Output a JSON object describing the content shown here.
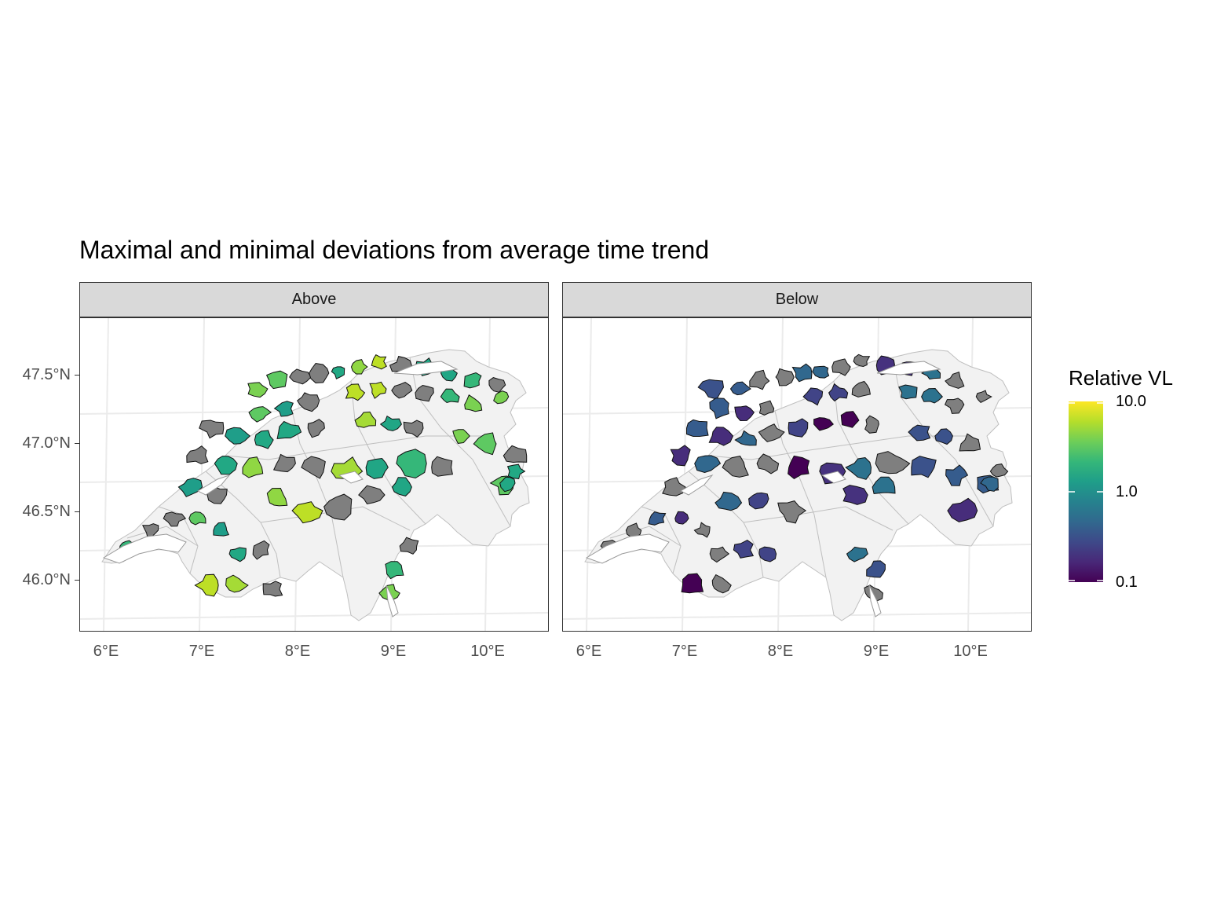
{
  "title": "Maximal and minimal deviations from average time trend",
  "panels": [
    {
      "label": "Above",
      "palette": [
        "#5ec962",
        "#7ad151",
        "#35b779",
        "#21a685",
        "#a5db36",
        "#bddf26",
        "#90d743",
        "#22a884",
        "#1f9e89"
      ]
    },
    {
      "label": "Below",
      "palette": [
        "#3b528b",
        "#2c728e",
        "#46327e",
        "#440154",
        "#414487",
        "#31688e",
        "#472d7b",
        "#365c8d"
      ]
    }
  ],
  "y_axis": {
    "ticks": [
      "47.5°N",
      "47.0°N",
      "46.5°N",
      "46.0°N"
    ]
  },
  "x_axis": {
    "ticks": [
      "6°E",
      "7°E",
      "8°E",
      "9°E",
      "10°E"
    ]
  },
  "legend": {
    "title": "Relative VL",
    "labels": [
      "10.0",
      "1.0",
      "0.1"
    ],
    "scale": "log",
    "colors": [
      "#fde725",
      "#b5de2b",
      "#6ece58",
      "#35b779",
      "#1f9e89",
      "#26828e",
      "#31688e",
      "#3e4989",
      "#482878",
      "#440154"
    ]
  },
  "colors": {
    "missing": "#7f7f7f",
    "background_country": "#f2f2f2",
    "border": "#bfbfbf"
  }
}
